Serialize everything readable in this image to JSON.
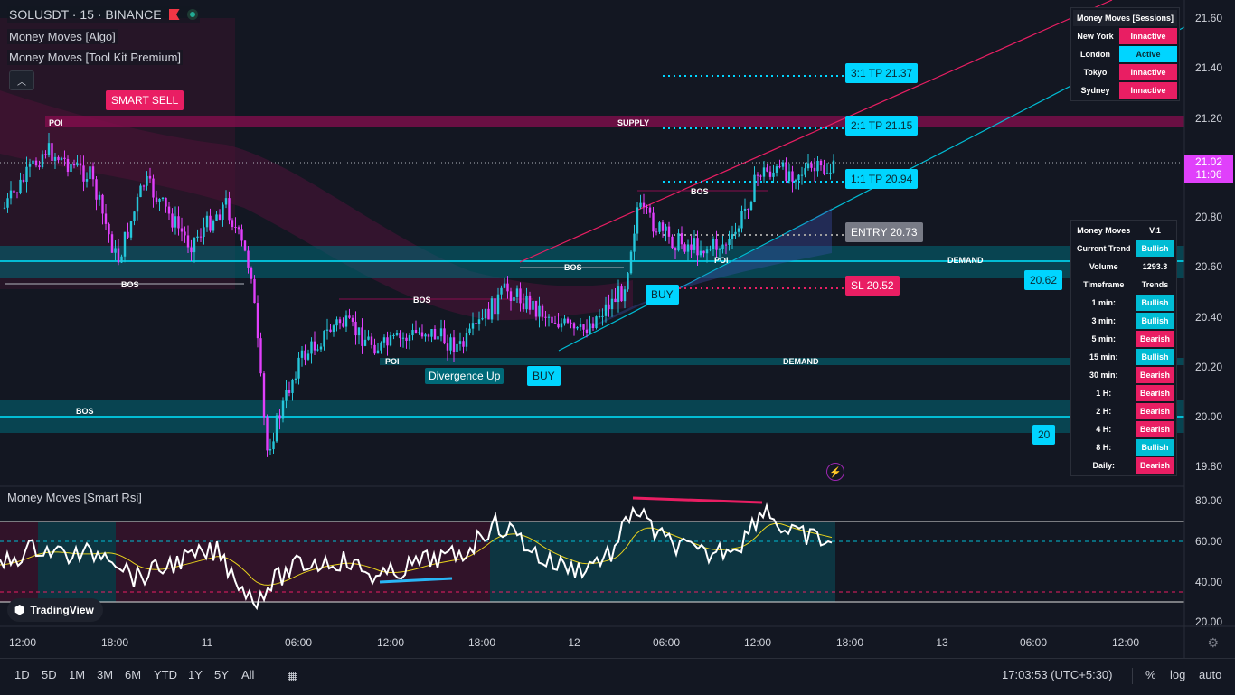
{
  "symbol": {
    "title": "SOLUSDT · 15 · BINANCE"
  },
  "indicators": [
    "Money Moves [Algo]",
    "Money Moves [Tool Kit Premium]"
  ],
  "rsi_title": "Money Moves [Smart Rsi]",
  "logo": "TradingView",
  "price_axis": {
    "ticks": [
      "21.60",
      "21.40",
      "21.20",
      "20.80",
      "20.60",
      "20.40",
      "20.20",
      "20.00",
      "19.80"
    ],
    "last_price": "21.02",
    "countdown": "11:06"
  },
  "rsi_axis": {
    "ticks": [
      "80.00",
      "60.00",
      "40.00",
      "20.00"
    ]
  },
  "time_axis": [
    "12:00",
    "18:00",
    "11",
    "06:00",
    "12:00",
    "18:00",
    "12",
    "06:00",
    "12:00",
    "18:00",
    "13",
    "06:00",
    "12:00"
  ],
  "tags": {
    "smart_sell": "SMART SELL",
    "tp3": "3:1 TP 21.37",
    "tp2": "2:1 TP 21.15",
    "tp1": "1:1 TP 20.94",
    "entry": "ENTRY 20.73",
    "sl": "SL 20.52",
    "buy1": "BUY",
    "buy2": "BUY",
    "divergence": "Divergence Up",
    "level_2062": "20.62",
    "level_20": "20"
  },
  "chart_labels": {
    "poi1": "POI",
    "supply": "SUPPLY",
    "bos1": "BOS",
    "bos2": "BOS",
    "bos3": "BOS",
    "bos4": "BOS",
    "bos5": "BOS",
    "poi2": "POI",
    "poi3": "POI",
    "demand1": "DEMAND",
    "demand2": "DEMAND"
  },
  "sessions": {
    "header": "Money Moves [Sessions]",
    "rows": [
      {
        "name": "New York",
        "status": "Innactive",
        "kind": "bear"
      },
      {
        "name": "London",
        "status": "Active",
        "kind": "act"
      },
      {
        "name": "Tokyo",
        "status": "Innactive",
        "kind": "bear"
      },
      {
        "name": "Sydney",
        "status": "Innactive",
        "kind": "bear"
      }
    ]
  },
  "trends": {
    "header_left": "Money Moves",
    "header_right": "V.1",
    "rows": [
      {
        "label": "Current Trend",
        "value": "Bullish",
        "kind": "bull"
      },
      {
        "label": "Volume",
        "value": "1293.3",
        "kind": "plain"
      },
      {
        "label": "Timeframe",
        "value": "Trends",
        "kind": "plain"
      },
      {
        "label": "1 min:",
        "value": "Bullish",
        "kind": "bull"
      },
      {
        "label": "3 min:",
        "value": "Bullish",
        "kind": "bull"
      },
      {
        "label": "5 min:",
        "value": "Bearish",
        "kind": "bear"
      },
      {
        "label": "15 min:",
        "value": "Bullish",
        "kind": "bull"
      },
      {
        "label": "30 min:",
        "value": "Bearish",
        "kind": "bear"
      },
      {
        "label": "1 H:",
        "value": "Bearish",
        "kind": "bear"
      },
      {
        "label": "2 H:",
        "value": "Bearish",
        "kind": "bear"
      },
      {
        "label": "4 H:",
        "value": "Bearish",
        "kind": "bear"
      },
      {
        "label": "8 H:",
        "value": "Bullish",
        "kind": "bull"
      },
      {
        "label": "Daily:",
        "value": "Bearish",
        "kind": "bear"
      }
    ]
  },
  "toolbar": {
    "ranges": [
      "1D",
      "5D",
      "1M",
      "3M",
      "6M",
      "YTD",
      "1Y",
      "5Y",
      "All"
    ],
    "clock": "17:03:53 (UTC+5:30)",
    "percent": "%",
    "log": "log",
    "auto": "auto"
  },
  "colors": {
    "up": "#26c6da",
    "down": "#e040fb",
    "cyan": "#00d5ff",
    "pink": "#e91e63",
    "bg": "#131722"
  }
}
